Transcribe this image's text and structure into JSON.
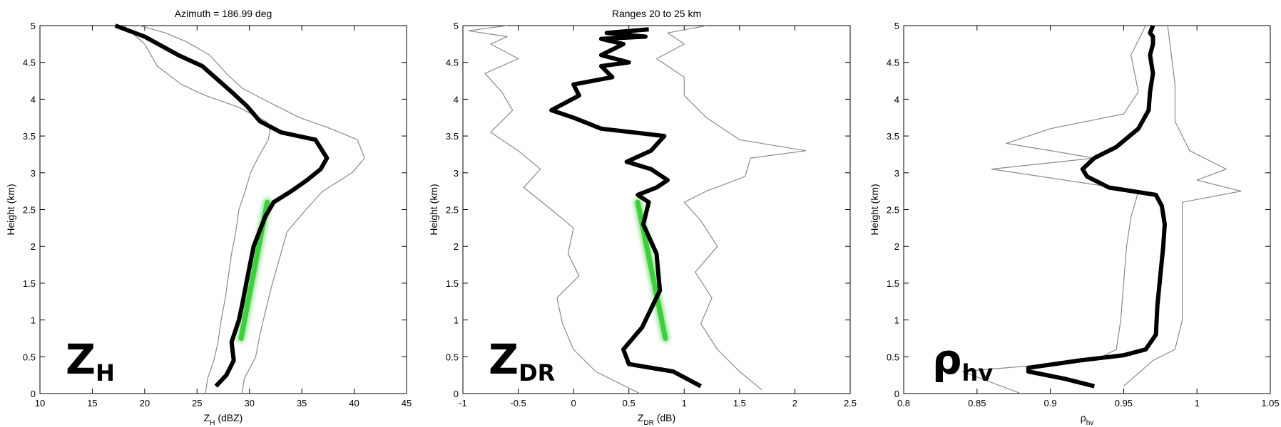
{
  "chart_data": [
    {
      "type": "line",
      "title": "Azimuth = 186.99 deg",
      "xlabel": "Z",
      "xlabel_sub": "H",
      "xlabel_unit": " (dBZ)",
      "ylabel": "Height (km)",
      "xlim": [
        10,
        45
      ],
      "ylim": [
        0,
        5
      ],
      "xticks": [
        10,
        15,
        20,
        25,
        30,
        35,
        40,
        45
      ],
      "yticks": [
        0,
        0.5,
        1,
        1.5,
        2,
        2.5,
        3,
        3.5,
        4,
        4.5,
        5
      ],
      "grid": false,
      "variable": "Z",
      "variable_sub": "H",
      "series": [
        {
          "role": "mean",
          "color": "#000000",
          "x": [
            26.8,
            27.8,
            28.5,
            28.3,
            29.0,
            29.3,
            29.7,
            30.4,
            31.5,
            32.3,
            34.0,
            35.5,
            36.8,
            37.4,
            36.3,
            33.0,
            31.0,
            29.8,
            28.3,
            25.5,
            23.2,
            20.0,
            17.2
          ],
          "y": [
            0.1,
            0.25,
            0.45,
            0.7,
            1.0,
            1.2,
            1.5,
            2.0,
            2.4,
            2.6,
            2.75,
            2.9,
            3.05,
            3.2,
            3.45,
            3.55,
            3.7,
            3.9,
            4.1,
            4.45,
            4.6,
            4.85,
            5.0
          ]
        },
        {
          "role": "lower",
          "color": "#8a8a8a",
          "x": [
            25.8,
            26.0,
            26.6,
            27.0,
            27.3,
            27.7,
            28.0,
            28.3,
            28.7,
            29.0,
            29.6,
            30.1,
            30.8,
            31.8,
            32.0,
            31.6,
            28.8,
            25.8,
            23.5,
            21.2,
            20.0,
            18.0
          ],
          "y": [
            0.0,
            0.2,
            0.45,
            0.7,
            1.0,
            1.3,
            1.6,
            1.9,
            2.2,
            2.5,
            2.75,
            3.0,
            3.2,
            3.45,
            3.6,
            3.7,
            3.9,
            4.05,
            4.2,
            4.45,
            4.75,
            5.0
          ]
        },
        {
          "role": "upper",
          "color": "#8a8a8a",
          "x": [
            29.3,
            29.5,
            30.6,
            31.0,
            31.5,
            32.1,
            32.8,
            33.6,
            35.4,
            37.0,
            39.8,
            41.0,
            40.3,
            37.4,
            34.8,
            32.0,
            29.3,
            27.8,
            26.2,
            24.0,
            22.0,
            19.5
          ],
          "y": [
            0.0,
            0.2,
            0.5,
            0.8,
            1.1,
            1.45,
            1.8,
            2.2,
            2.5,
            2.75,
            3.0,
            3.2,
            3.45,
            3.62,
            3.75,
            3.95,
            4.15,
            4.35,
            4.6,
            4.78,
            4.9,
            5.0
          ]
        },
        {
          "role": "fit",
          "color": "#33cc33",
          "x": [
            29.2,
            31.7
          ],
          "y": [
            0.75,
            2.6
          ]
        }
      ]
    },
    {
      "type": "line",
      "title": "Ranges 20 to 25 km",
      "xlabel": "Z",
      "xlabel_sub": "DR",
      "xlabel_unit": " (dB)",
      "ylabel": "Height (km)",
      "xlim": [
        -1,
        2.5
      ],
      "ylim": [
        0,
        5
      ],
      "xticks": [
        -1,
        -0.5,
        0,
        0.5,
        1,
        1.5,
        2,
        2.5
      ],
      "yticks": [
        0,
        0.5,
        1,
        1.5,
        2,
        2.5,
        3,
        3.5,
        4,
        4.5,
        5
      ],
      "grid": false,
      "variable": "Z",
      "variable_sub": "DR",
      "series": [
        {
          "role": "mean",
          "color": "#000000",
          "x": [
            1.15,
            0.9,
            0.5,
            0.45,
            0.62,
            0.78,
            0.75,
            0.63,
            0.68,
            0.58,
            0.75,
            0.85,
            0.7,
            0.48,
            0.7,
            0.82,
            0.25,
            0.0,
            -0.2,
            0.05,
            0.0,
            0.35,
            0.25,
            0.5,
            0.25,
            0.45,
            0.25,
            0.65,
            0.3,
            0.68
          ],
          "y": [
            0.1,
            0.3,
            0.4,
            0.6,
            0.9,
            1.4,
            1.9,
            2.3,
            2.6,
            2.7,
            2.8,
            2.9,
            3.05,
            3.15,
            3.3,
            3.5,
            3.6,
            3.75,
            3.85,
            4.05,
            4.2,
            4.3,
            4.45,
            4.5,
            4.6,
            4.75,
            4.82,
            4.85,
            4.9,
            4.95
          ]
        },
        {
          "role": "lower",
          "color": "#8a8a8a",
          "x": [
            0.6,
            0.2,
            0.0,
            -0.1,
            -0.15,
            0.05,
            -0.05,
            0.0,
            -0.2,
            -0.45,
            -0.3,
            -0.5,
            -0.75,
            -0.55,
            -0.65,
            -0.8,
            -0.5,
            -0.75,
            -0.6,
            -0.95,
            -0.6
          ],
          "y": [
            0.0,
            0.3,
            0.6,
            0.95,
            1.3,
            1.6,
            1.9,
            2.25,
            2.5,
            2.8,
            3.05,
            3.3,
            3.55,
            3.85,
            4.1,
            4.35,
            4.55,
            4.75,
            4.85,
            4.93,
            5.0
          ]
        },
        {
          "role": "upper",
          "color": "#8a8a8a",
          "x": [
            1.7,
            1.5,
            1.3,
            1.15,
            1.25,
            1.1,
            1.3,
            1.15,
            1.0,
            1.2,
            1.55,
            1.6,
            2.1,
            1.5,
            1.2,
            1.0,
            1.0,
            0.75,
            1.0,
            0.85,
            1.2
          ],
          "y": [
            0.05,
            0.3,
            0.6,
            0.95,
            1.3,
            1.65,
            2.0,
            2.35,
            2.6,
            2.75,
            2.95,
            3.2,
            3.3,
            3.45,
            3.75,
            4.05,
            4.3,
            4.55,
            4.75,
            4.9,
            5.0
          ]
        },
        {
          "role": "fit",
          "color": "#33cc33",
          "x": [
            0.58,
            0.83
          ],
          "y": [
            2.6,
            0.75
          ]
        }
      ]
    },
    {
      "type": "line",
      "title": "",
      "xlabel": "ρ",
      "xlabel_sub": "hv",
      "xlabel_unit": "",
      "ylabel": "Height (km)",
      "xlim": [
        0.8,
        1.05
      ],
      "ylim": [
        0,
        5
      ],
      "xticks": [
        0.8,
        0.85,
        0.9,
        0.95,
        1,
        1.05
      ],
      "yticks": [
        0,
        0.5,
        1,
        1.5,
        2,
        2.5,
        3,
        3.5,
        4,
        4.5,
        5
      ],
      "grid": false,
      "variable": "ρ",
      "variable_sub": "hv",
      "series": [
        {
          "role": "mean",
          "color": "#000000",
          "x": [
            0.93,
            0.91,
            0.885,
            0.885,
            0.92,
            0.95,
            0.965,
            0.972,
            0.973,
            0.975,
            0.977,
            0.978,
            0.976,
            0.972,
            0.94,
            0.925,
            0.922,
            0.93,
            0.945,
            0.96,
            0.967,
            0.968,
            0.97,
            0.968,
            0.97,
            0.97,
            0.968,
            0.97
          ],
          "y": [
            0.1,
            0.2,
            0.3,
            0.35,
            0.45,
            0.52,
            0.6,
            0.8,
            1.2,
            1.6,
            2.0,
            2.3,
            2.55,
            2.7,
            2.8,
            2.95,
            3.05,
            3.2,
            3.35,
            3.6,
            3.85,
            4.1,
            4.35,
            4.6,
            4.75,
            4.85,
            4.9,
            5.0
          ]
        },
        {
          "role": "lower",
          "color": "#8a8a8a",
          "x": [
            0.88,
            0.84,
            0.93,
            0.945,
            0.948,
            0.95,
            0.952,
            0.955,
            0.958,
            0.96,
            0.86,
            0.93,
            0.87,
            0.9,
            0.95,
            0.96,
            0.955,
            0.965
          ],
          "y": [
            0.0,
            0.3,
            0.45,
            0.6,
            1.0,
            1.5,
            2.0,
            2.4,
            2.6,
            2.75,
            3.05,
            3.2,
            3.4,
            3.6,
            3.8,
            4.1,
            4.6,
            5.0
          ]
        },
        {
          "role": "upper",
          "color": "#8a8a8a",
          "x": [
            0.95,
            0.97,
            0.985,
            0.99,
            0.99,
            0.99,
            0.99,
            0.99,
            1.03,
            1.0,
            1.02,
            0.995,
            0.985,
            0.985,
            0.98
          ],
          "y": [
            0.1,
            0.45,
            0.6,
            1.0,
            1.5,
            2.0,
            2.4,
            2.6,
            2.75,
            2.9,
            3.05,
            3.3,
            3.7,
            4.2,
            5.0
          ]
        }
      ]
    }
  ]
}
